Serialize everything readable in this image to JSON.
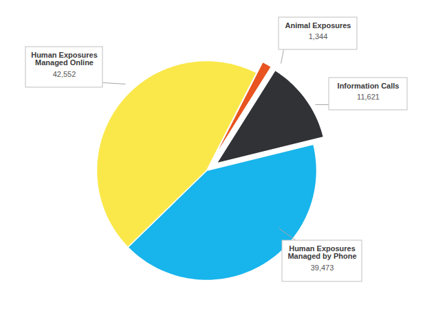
{
  "chart_data": {
    "type": "pie",
    "categories": [
      "Animal Exposures",
      "Information Calls",
      "Human Exposures Managed by Phone",
      "Human Exposures Managed Online"
    ],
    "values": [
      1344,
      11621,
      39473,
      42552
    ],
    "value_labels": [
      "1,344",
      "11,621",
      "39,473",
      "42,552"
    ],
    "colors": [
      "#e8531f",
      "#303236",
      "#18b4ec",
      "#fae84a"
    ],
    "data_labels": true
  }
}
